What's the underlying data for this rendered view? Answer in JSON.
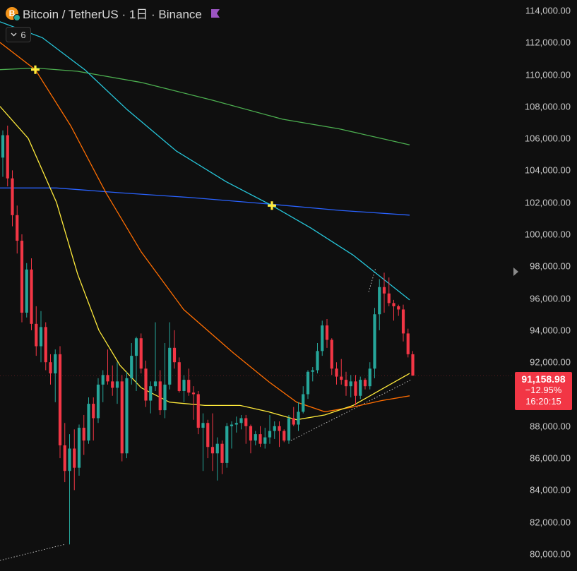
{
  "header": {
    "symbol_title": "Bitcoin / TetherUS · 1日 · Binance",
    "coin_icon_letter": "B",
    "indicator_count": "6"
  },
  "price_tag": {
    "price": "91,158.98",
    "change": "−12.95%",
    "countdown": "16:20:15",
    "color": "#f23645"
  },
  "colors": {
    "up": "#26a69a",
    "down": "#f23645",
    "background": "#0f0f0f"
  },
  "chart_data": {
    "type": "candlestick",
    "y_axis": {
      "ticks": [
        "114,000.00",
        "112,000.00",
        "110,000.00",
        "108,000.00",
        "106,000.00",
        "104,000.00",
        "102,000.00",
        "100,000.00",
        "98,000.00",
        "96,000.00",
        "94,000.00",
        "92,000.00",
        "88,000.00",
        "86,000.00",
        "84,000.00",
        "82,000.00",
        "80,000.00"
      ],
      "range": [
        80000,
        114000
      ]
    },
    "candles": [
      [
        104800,
        106500,
        103600,
        106200
      ],
      [
        106200,
        106800,
        103000,
        103500
      ],
      [
        103500,
        104000,
        100500,
        101200
      ],
      [
        101200,
        101800,
        98800,
        99600
      ],
      [
        99600,
        100000,
        94500,
        95100
      ],
      [
        95100,
        98200,
        94800,
        97800
      ],
      [
        97800,
        98500,
        94000,
        94400
      ],
      [
        94400,
        95500,
        92400,
        93000
      ],
      [
        93000,
        95200,
        92000,
        94200
      ],
      [
        94200,
        94500,
        91500,
        92000
      ],
      [
        92000,
        92500,
        90600,
        91300
      ],
      [
        91300,
        92800,
        89500,
        92500
      ],
      [
        92500,
        93000,
        86000,
        86800
      ],
      [
        86800,
        88200,
        84500,
        85200
      ],
      [
        85200,
        87500,
        80600,
        86600
      ],
      [
        86600,
        87800,
        84000,
        85400
      ],
      [
        85400,
        88100,
        84900,
        87900
      ],
      [
        87900,
        88700,
        86200,
        87100
      ],
      [
        87100,
        89800,
        86900,
        89400
      ],
      [
        89400,
        89800,
        87100,
        88500
      ],
      [
        88500,
        91000,
        88200,
        90600
      ],
      [
        90600,
        91500,
        89500,
        91200
      ],
      [
        91200,
        92800,
        90600,
        90800
      ],
      [
        90800,
        91800,
        89900,
        90400
      ],
      [
        90400,
        92000,
        89400,
        90800
      ],
      [
        90800,
        91200,
        85800,
        86300
      ],
      [
        86300,
        91400,
        86000,
        91000
      ],
      [
        91000,
        93200,
        90600,
        92400
      ],
      [
        92400,
        93600,
        90200,
        93500
      ],
      [
        93500,
        93800,
        91300,
        91600
      ],
      [
        91600,
        92100,
        89200,
        89600
      ],
      [
        89600,
        90800,
        88800,
        90500
      ],
      [
        90500,
        94500,
        90200,
        90800
      ],
      [
        90800,
        91500,
        88700,
        89000
      ],
      [
        89000,
        93200,
        88500,
        90600
      ],
      [
        90600,
        94500,
        90300,
        92900
      ],
      [
        92900,
        94000,
        91600,
        92000
      ],
      [
        92000,
        92300,
        90100,
        90200
      ],
      [
        90200,
        91200,
        89500,
        90900
      ],
      [
        90900,
        91600,
        89900,
        90100
      ],
      [
        90100,
        90500,
        88400,
        90000
      ],
      [
        90000,
        90200,
        87500,
        87900
      ],
      [
        87900,
        88800,
        85200,
        88200
      ],
      [
        88200,
        88400,
        86000,
        86700
      ],
      [
        86700,
        88800,
        85200,
        86300
      ],
      [
        86300,
        87300,
        84600,
        86900
      ],
      [
        86900,
        87100,
        85000,
        85700
      ],
      [
        85700,
        88200,
        85400,
        88000
      ],
      [
        88000,
        88300,
        86600,
        88100
      ],
      [
        88100,
        88600,
        87600,
        88200
      ],
      [
        88200,
        88700,
        87800,
        88500
      ],
      [
        88500,
        88700,
        86900,
        88000
      ],
      [
        88000,
        88100,
        86300,
        87100
      ],
      [
        87100,
        87700,
        86800,
        87500
      ],
      [
        87500,
        88000,
        86700,
        86900
      ],
      [
        86900,
        87900,
        86600,
        87300
      ],
      [
        87300,
        88700,
        86900,
        87700
      ],
      [
        87700,
        88300,
        87200,
        88000
      ],
      [
        88000,
        88300,
        86700,
        87700
      ],
      [
        87700,
        87800,
        87000,
        87100
      ],
      [
        87100,
        88700,
        86900,
        88500
      ],
      [
        88500,
        89200,
        88000,
        88100
      ],
      [
        88100,
        89500,
        87700,
        88900
      ],
      [
        88900,
        90500,
        88800,
        90000
      ],
      [
        90000,
        91500,
        89700,
        91400
      ],
      [
        91400,
        91700,
        90800,
        91500
      ],
      [
        91500,
        93200,
        91300,
        92700
      ],
      [
        92700,
        94600,
        92400,
        94300
      ],
      [
        94300,
        94700,
        92900,
        93400
      ],
      [
        93400,
        93500,
        91200,
        91600
      ],
      [
        91600,
        92000,
        90600,
        91100
      ],
      [
        91100,
        92200,
        90600,
        90900
      ],
      [
        90900,
        91400,
        89900,
        90500
      ],
      [
        90500,
        91200,
        89800,
        90800
      ],
      [
        90800,
        91200,
        89300,
        89900
      ],
      [
        89900,
        91100,
        89700,
        90900
      ],
      [
        90900,
        91000,
        90300,
        90500
      ],
      [
        90500,
        92000,
        90300,
        91600
      ],
      [
        91600,
        95400,
        91000,
        95000
      ],
      [
        95000,
        97200,
        94000,
        96700
      ],
      [
        96700,
        97600,
        95100,
        96300
      ],
      [
        96300,
        97300,
        95500,
        95700
      ],
      [
        95700,
        95900,
        94600,
        95500
      ],
      [
        95500,
        95600,
        94900,
        95300
      ],
      [
        95300,
        95600,
        93300,
        93800
      ],
      [
        93800,
        94100,
        92300,
        92500
      ],
      [
        92500,
        92700,
        91200,
        91159
      ]
    ],
    "series": [
      {
        "color": "#2962ff",
        "values": [
          [
            0,
            102900
          ],
          [
            80,
            102900
          ],
          [
            170,
            102600
          ],
          [
            270,
            102300
          ],
          [
            380,
            101900
          ],
          [
            480,
            101500
          ],
          [
            580,
            101200
          ]
        ]
      },
      {
        "color": "#4caf50",
        "values": [
          [
            0,
            110300
          ],
          [
            50,
            110400
          ],
          [
            110,
            110200
          ],
          [
            200,
            109500
          ],
          [
            300,
            108400
          ],
          [
            400,
            107200
          ],
          [
            480,
            106600
          ],
          [
            580,
            105600
          ]
        ]
      },
      {
        "color": "#26c6da",
        "values": [
          [
            0,
            113300
          ],
          [
            60,
            112300
          ],
          [
            120,
            110300
          ],
          [
            180,
            107800
          ],
          [
            250,
            105200
          ],
          [
            320,
            103300
          ],
          [
            385,
            101800
          ],
          [
            440,
            100400
          ],
          [
            500,
            98700
          ],
          [
            580,
            95900
          ]
        ]
      },
      {
        "color": "#ff6d00",
        "values": [
          [
            0,
            112000
          ],
          [
            50,
            110300
          ],
          [
            100,
            106800
          ],
          [
            150,
            102600
          ],
          [
            200,
            98900
          ],
          [
            260,
            95300
          ],
          [
            330,
            92600
          ],
          [
            380,
            90800
          ],
          [
            420,
            89500
          ],
          [
            460,
            88900
          ],
          [
            500,
            89200
          ],
          [
            540,
            89600
          ],
          [
            580,
            89900
          ]
        ]
      },
      {
        "color": "#ffeb3b",
        "values": [
          [
            0,
            108000
          ],
          [
            40,
            106000
          ],
          [
            80,
            102000
          ],
          [
            110,
            97500
          ],
          [
            140,
            94000
          ],
          [
            170,
            91800
          ],
          [
            200,
            90400
          ],
          [
            240,
            89500
          ],
          [
            290,
            89300
          ],
          [
            340,
            89300
          ],
          [
            380,
            88900
          ],
          [
            420,
            88400
          ],
          [
            460,
            88700
          ],
          [
            500,
            89300
          ],
          [
            540,
            90300
          ],
          [
            580,
            91300
          ]
        ]
      }
    ],
    "cross_markers": [
      [
        50,
        110300
      ],
      [
        385,
        101800
      ]
    ]
  }
}
